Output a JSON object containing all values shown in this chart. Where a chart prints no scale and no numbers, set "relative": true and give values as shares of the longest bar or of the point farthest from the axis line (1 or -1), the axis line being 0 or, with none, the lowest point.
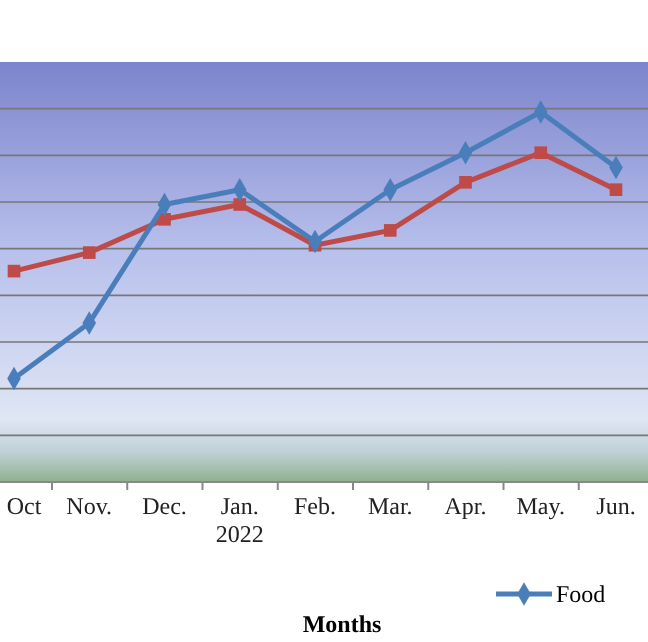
{
  "chart_data": {
    "type": "line",
    "relative": true,
    "xlabel": "Months",
    "categories": [
      "Oct",
      "Nov.",
      "Dec.",
      "Jan.\n2022",
      "Feb.",
      "Mar.",
      "Apr.",
      "May.",
      "Jun."
    ],
    "series": [
      {
        "name": "Food",
        "color": "#4a7ebb",
        "marker": "diamond",
        "values": [
          0.28,
          0.43,
          0.75,
          0.79,
          0.65,
          0.79,
          0.89,
          1,
          0.85
        ]
      },
      {
        "color": "#be4b48",
        "marker": "square",
        "values": [
          0.57,
          0.62,
          0.71,
          0.75,
          0.64,
          0.68,
          0.81,
          0.89,
          0.79
        ]
      }
    ],
    "grid": "y",
    "legend": "bottom right"
  }
}
